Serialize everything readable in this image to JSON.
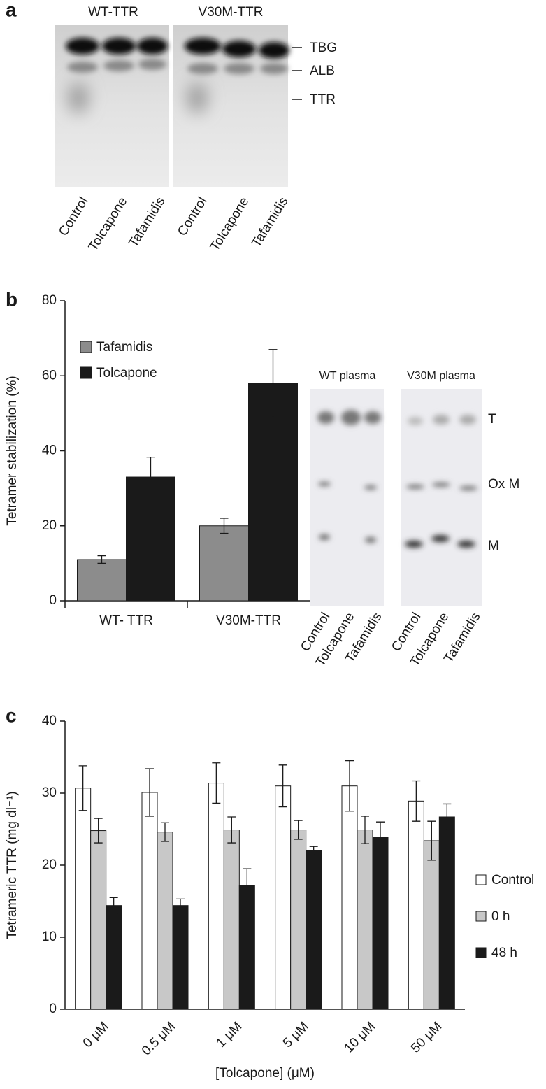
{
  "panels": {
    "a": {
      "letter": "a",
      "headers": [
        "WT-TTR",
        "V30M-TTR"
      ],
      "bands": [
        "TBG",
        "ALB",
        "TTR"
      ],
      "lanes": [
        "Control",
        "Tolcapone",
        "Tafamidis",
        "Control",
        "Tolcapone",
        "Tafamidis"
      ]
    },
    "b": {
      "letter": "b",
      "gel_headers": [
        "WT plasma",
        "V30M plasma"
      ],
      "bands": [
        "T",
        "Ox M",
        "M"
      ],
      "lanes": [
        "Control",
        "Tolcapone",
        "Tafamidis",
        "Control",
        "Tolcapone",
        "Tafamidis"
      ]
    },
    "c": {
      "letter": "c"
    }
  },
  "chart_data": [
    {
      "type": "bar",
      "ylabel": "Tetramer stabilization (%)",
      "categories": [
        "WT- TTR",
        "V30M-TTR"
      ],
      "series": [
        {
          "name": "Tafamidis",
          "color": "#8c8c8c",
          "values": [
            11,
            20
          ],
          "errors": [
            1,
            2
          ]
        },
        {
          "name": "Tolcapone",
          "color": "#1a1a1a",
          "values": [
            33,
            58
          ],
          "errors": [
            5.3,
            9
          ]
        }
      ],
      "ylim": [
        0,
        80
      ],
      "yticks": [
        0,
        20,
        40,
        60,
        80
      ],
      "legend": "upper left"
    },
    {
      "type": "bar",
      "ylabel": "Tetrameric TTR (mg dl⁻¹)",
      "xlabel": "[Tolcapone] (μM)",
      "categories": [
        "0 μM",
        "0.5 μM",
        "1 μM",
        "5 μM",
        "10 μM",
        "50 μM"
      ],
      "series": [
        {
          "name": "Control",
          "color": "#ffffff",
          "values": [
            30.7,
            30.1,
            31.4,
            31,
            31,
            28.9
          ],
          "errors": [
            3.1,
            3.3,
            2.8,
            2.9,
            3.5,
            2.8
          ]
        },
        {
          "name": "0 h",
          "color": "#c8c8c8",
          "values": [
            24.8,
            24.6,
            24.9,
            24.9,
            24.9,
            23.4
          ],
          "errors": [
            1.7,
            1.3,
            1.8,
            1.3,
            1.9,
            2.7
          ]
        },
        {
          "name": "48 h",
          "color": "#1a1a1a",
          "values": [
            14.4,
            14.4,
            17.2,
            22,
            23.9,
            26.7
          ],
          "errors": [
            1.1,
            0.9,
            2.3,
            0.6,
            2.1,
            1.8
          ]
        }
      ],
      "ylim": [
        0,
        40
      ],
      "yticks": [
        0,
        10,
        20,
        30,
        40
      ],
      "legend": "right"
    }
  ]
}
